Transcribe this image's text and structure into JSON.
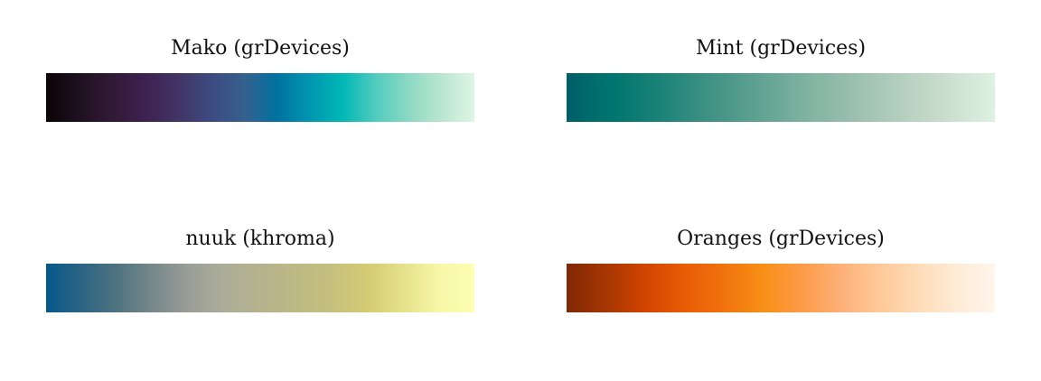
{
  "chart_data": [
    {
      "type": "heatmap",
      "title": "Mako (grDevices)",
      "colors": [
        "#0B0405",
        "#1E1020",
        "#311A35",
        "#3E2150",
        "#413465",
        "#3D4A7F",
        "#36608F",
        "#0072A0",
        "#0096B0",
        "#00B8B6",
        "#52CCBE",
        "#8DD9C3",
        "#BBE6D0",
        "#DEF5E5"
      ]
    },
    {
      "type": "heatmap",
      "title": "Mint (grDevices)",
      "colors": [
        "#005F68",
        "#00766F",
        "#1C8378",
        "#3F9284",
        "#5FA191",
        "#7EB2A0",
        "#9ABFAE",
        "#B4CFBE",
        "#CCDECD",
        "#DDF2E3"
      ]
    },
    {
      "type": "heatmap",
      "title": "nuuk (khroma)",
      "colors": [
        "#05598C",
        "#2D6483",
        "#4F7380",
        "#78898B",
        "#9A9D98",
        "#ADAE99",
        "#B5B28D",
        "#BDB985",
        "#C5C07D",
        "#D4CB73",
        "#E5E18B",
        "#F7F7A7",
        "#FEFEB2"
      ]
    },
    {
      "type": "heatmap",
      "title": "Oranges (grDevices)",
      "colors": [
        "#7F2704",
        "#A63603",
        "#D14401",
        "#E85B04",
        "#F0710D",
        "#F78E14",
        "#FD9A45",
        "#FDB077",
        "#FEC897",
        "#FEDBB6",
        "#FEEBD6",
        "#FFF5EB"
      ]
    }
  ]
}
